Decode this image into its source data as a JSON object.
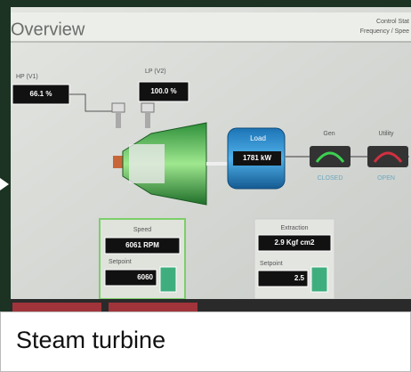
{
  "header": {
    "title": "Overview",
    "right_line1": "Control Stat",
    "right_line2": "Frequency / Spee"
  },
  "valves": {
    "hp_label": "HP (V1)",
    "hp_value": "66.1 %",
    "lp_label": "LP (V2)",
    "lp_value": "100.0 %"
  },
  "load": {
    "label": "Load",
    "value": "1781 kW"
  },
  "gen": {
    "label": "Gen",
    "status": "CLOSED"
  },
  "utility": {
    "label": "Utility",
    "status": "OPEN"
  },
  "speed": {
    "label": "Speed",
    "value": "6061 RPM",
    "setpoint_label": "Setpoint",
    "setpoint": "6060"
  },
  "extraction": {
    "label": "Extraction",
    "value": "2.9 Kgf cm2",
    "setpoint_label": "Setpoint",
    "setpoint": "2.5"
  },
  "caption": "Steam turbine"
}
